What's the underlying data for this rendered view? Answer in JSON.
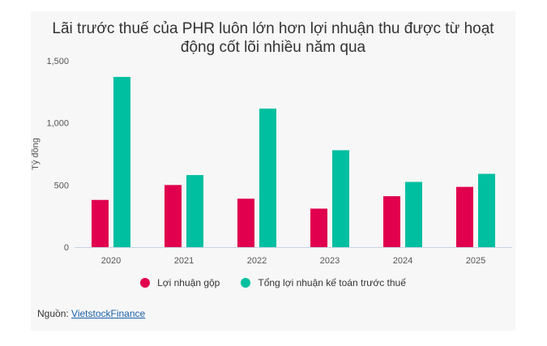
{
  "chart_data": {
    "type": "bar",
    "title_lines": [
      "Lãi trước thuế của PHR luôn lớn hơn lợi nhuận thu được từ hoạt",
      "động cốt lõi nhiều năm qua"
    ],
    "ylabel": "Tỷ đồng",
    "xlabel": "",
    "categories": [
      "2020",
      "2021",
      "2022",
      "2023",
      "2024",
      "2025"
    ],
    "ylim": [
      0,
      1500
    ],
    "yticks": [
      0,
      500,
      1000,
      1500
    ],
    "ytick_labels": [
      "0",
      "500",
      "1,000",
      "1,500"
    ],
    "grid": false,
    "legend_position": "bottom",
    "series": [
      {
        "name": "Lợi nhuận gộp",
        "color": "#e0004d",
        "values": [
          380,
          500,
          390,
          310,
          410,
          485
        ]
      },
      {
        "name": "Tổng lợi nhuận kế toán trước thuế",
        "color": "#00bfa0",
        "values": [
          1370,
          580,
          1115,
          780,
          525,
          590
        ]
      }
    ]
  },
  "source": {
    "label": "Nguồn:",
    "link_text": "VietstockFinance"
  }
}
